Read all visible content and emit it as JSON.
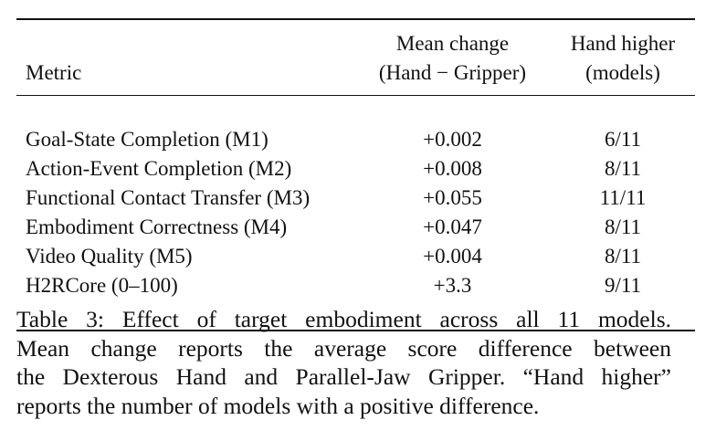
{
  "table": {
    "header": {
      "metric": "Metric",
      "mean_change_line1": "Mean change",
      "mean_change_line2": "(Hand − Gripper)",
      "hand_higher_line1": "Hand higher",
      "hand_higher_line2": "(models)"
    },
    "rows": [
      {
        "metric": "Goal-State Completion (M1)",
        "mean_change": "+0.002",
        "hand_higher": "6/11"
      },
      {
        "metric": "Action-Event Completion (M2)",
        "mean_change": "+0.008",
        "hand_higher": "8/11"
      },
      {
        "metric": "Functional Contact Transfer (M3)",
        "mean_change": "+0.055",
        "hand_higher": "11/11"
      },
      {
        "metric": "Embodiment Correctness (M4)",
        "mean_change": "+0.047",
        "hand_higher": "8/11"
      },
      {
        "metric": "Video Quality (M5)",
        "mean_change": "+0.004",
        "hand_higher": "8/11"
      },
      {
        "metric": "H2RCore (0–100)",
        "mean_change": "+3.3",
        "hand_higher": "9/11"
      }
    ]
  },
  "caption": {
    "lines": [
      "Table 3: Effect of target embodiment across all 11 models.",
      "Mean change reports the average score difference between",
      "the Dexterous Hand and Parallel-Jaw Gripper. “Hand higher”",
      "reports the number of models with a positive difference."
    ]
  }
}
